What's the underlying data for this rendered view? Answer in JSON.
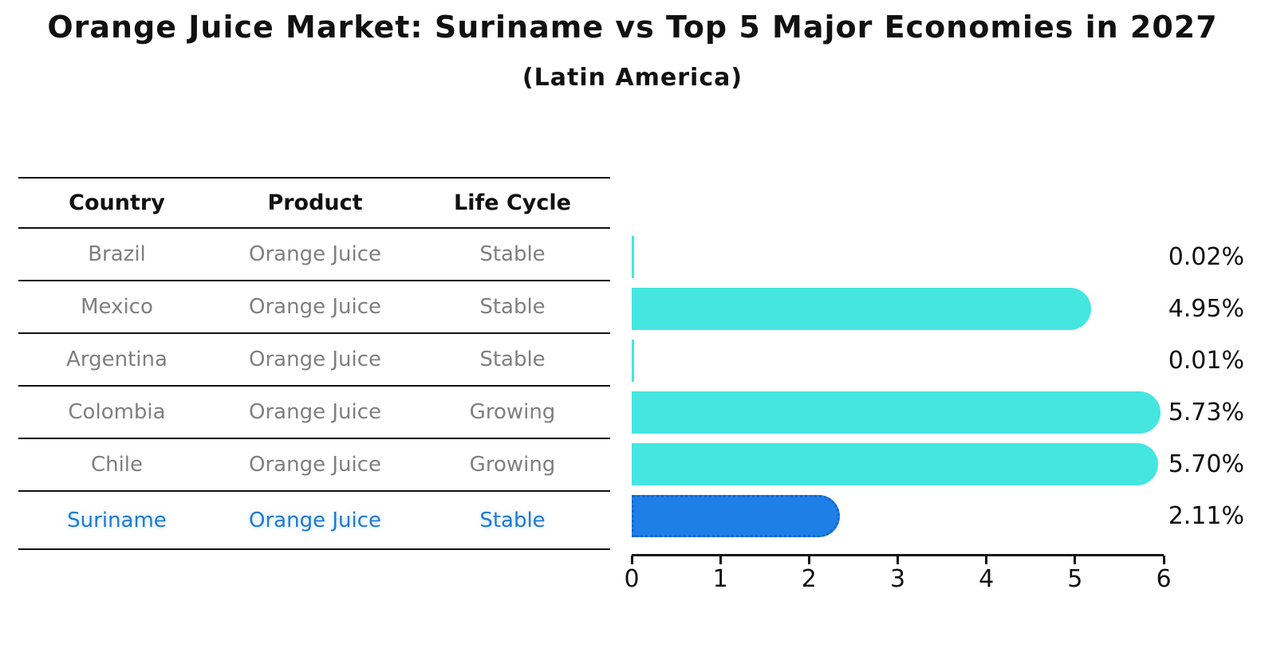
{
  "title": "Orange Juice Market: Suriname vs Top 5 Major Economies in 2027",
  "subtitle": "(Latin America)",
  "table": {
    "headers": [
      "Country",
      "Product",
      "Life Cycle"
    ],
    "rows": [
      {
        "country": "Brazil",
        "product": "Orange Juice",
        "life_cycle": "Stable",
        "highlighted": false
      },
      {
        "country": "Mexico",
        "product": "Orange Juice",
        "life_cycle": "Stable",
        "highlighted": false
      },
      {
        "country": "Argentina",
        "product": "Orange Juice",
        "life_cycle": "Stable",
        "highlighted": false
      },
      {
        "country": "Colombia",
        "product": "Orange Juice",
        "life_cycle": "Growing",
        "highlighted": false
      },
      {
        "country": "Chile",
        "product": "Orange Juice",
        "life_cycle": "Growing",
        "highlighted": false
      },
      {
        "country": "Suriname",
        "product": "Orange Juice",
        "life_cycle": "Stable",
        "highlighted": true
      }
    ]
  },
  "chart_data": {
    "type": "bar",
    "orientation": "horizontal",
    "title": "Orange Juice Market: Suriname vs Top 5 Major Economies in 2027",
    "subtitle": "(Latin America)",
    "categories": [
      "Brazil",
      "Mexico",
      "Argentina",
      "Colombia",
      "Chile",
      "Suriname"
    ],
    "values": [
      0.02,
      4.95,
      0.01,
      5.73,
      5.7,
      2.11
    ],
    "value_labels": [
      "0.02%",
      "4.95%",
      "0.01%",
      "5.73%",
      "5.70%",
      "2.11%"
    ],
    "highlight_category": "Suriname",
    "xlim": [
      0,
      6
    ],
    "x_ticks": [
      "0",
      "1",
      "2",
      "3",
      "4",
      "5",
      "6"
    ],
    "grid": false,
    "legend": "none",
    "colors": {
      "bar": "#45e6e0",
      "highlight_bar": "#1e80e6",
      "highlight_bar_border": "#1565cf",
      "axis": "#111111",
      "value_label_text": "#111111",
      "table_text": "#7f7f7f",
      "table_highlight_text": "#1f7ad1"
    }
  }
}
